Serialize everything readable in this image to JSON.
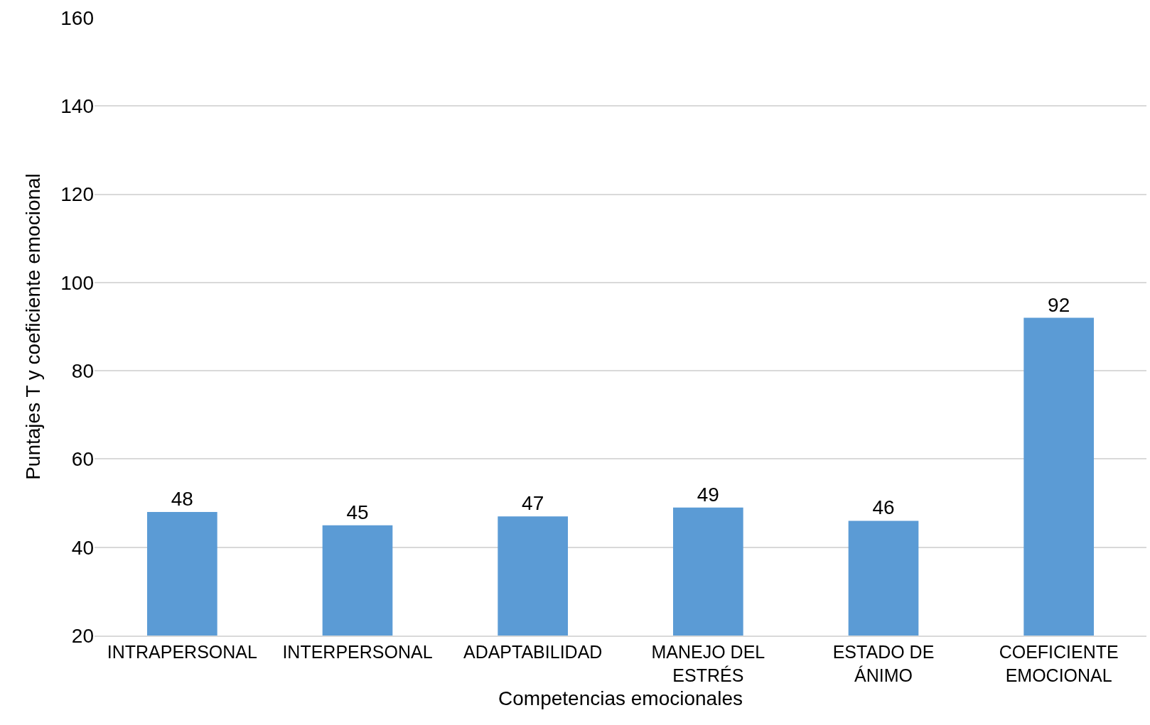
{
  "chart_data": {
    "type": "bar",
    "xlabel": "Competencias emocionales",
    "ylabel": "Puntajes T y coeficiente emocional",
    "categories": [
      "INTRAPERSONAL",
      "INTERPERSONAL",
      "ADAPTABILIDAD",
      "MANEJO DEL ESTRÉS",
      "ESTADO DE ÁNIMO",
      "COEFICIENTE EMOCIONAL"
    ],
    "values": [
      48,
      45,
      47,
      49,
      46,
      92
    ],
    "color": "#5b9bd5",
    "ylim": [
      20,
      160
    ],
    "yticks": [
      20,
      40,
      60,
      80,
      100,
      120,
      140,
      160
    ],
    "grid": "y",
    "data_labels": true,
    "legend": false
  }
}
